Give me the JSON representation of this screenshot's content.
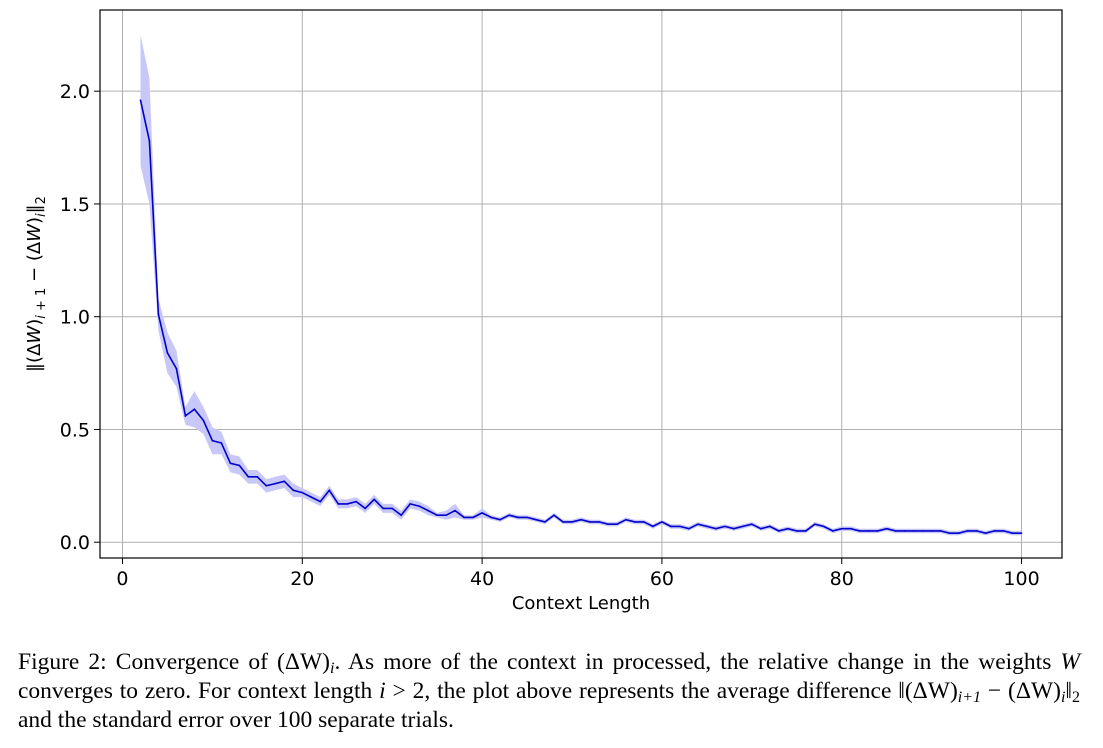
{
  "chart_data": {
    "type": "line",
    "xlabel": "Context Length",
    "ylabel": "||(ΔW)i+1 − (ΔW)i||2",
    "xlim": [
      -2.5,
      104.5
    ],
    "ylim": [
      -0.07,
      2.36
    ],
    "xticks": [
      0,
      20,
      40,
      60,
      80,
      100
    ],
    "yticks": [
      0.0,
      0.5,
      1.0,
      1.5,
      2.0
    ],
    "xtick_labels": [
      "0",
      "20",
      "40",
      "60",
      "80",
      "100"
    ],
    "ytick_labels": [
      "0.0",
      "0.5",
      "1.0",
      "1.5",
      "2.0"
    ],
    "grid": true,
    "line_color": "#0000cc",
    "band_color": "#c8c8f8",
    "series": [
      {
        "x": [
          2,
          3,
          4,
          5,
          6,
          7,
          8,
          9,
          10,
          11,
          12,
          13,
          14,
          15,
          16,
          17,
          18,
          19,
          20,
          21,
          22,
          23,
          24,
          25,
          26,
          27,
          28,
          29,
          30,
          31,
          32,
          33,
          34,
          35,
          36,
          37,
          38,
          39,
          40,
          41,
          42,
          43,
          44,
          45,
          46,
          47,
          48,
          49,
          50,
          51,
          52,
          53,
          54,
          55,
          56,
          57,
          58,
          59,
          60,
          61,
          62,
          63,
          64,
          65,
          66,
          67,
          68,
          69,
          70,
          71,
          72,
          73,
          74,
          75,
          76,
          77,
          78,
          79,
          80,
          81,
          82,
          83,
          84,
          85,
          86,
          87,
          88,
          89,
          90,
          91,
          92,
          93,
          94,
          95,
          96,
          97,
          98,
          99,
          100
        ],
        "y": [
          1.96,
          1.78,
          1.01,
          0.84,
          0.77,
          0.56,
          0.59,
          0.54,
          0.45,
          0.44,
          0.35,
          0.34,
          0.29,
          0.29,
          0.25,
          0.26,
          0.27,
          0.23,
          0.22,
          0.2,
          0.18,
          0.23,
          0.17,
          0.17,
          0.18,
          0.15,
          0.19,
          0.15,
          0.15,
          0.12,
          0.17,
          0.16,
          0.14,
          0.12,
          0.12,
          0.14,
          0.11,
          0.11,
          0.13,
          0.11,
          0.1,
          0.12,
          0.11,
          0.11,
          0.1,
          0.09,
          0.12,
          0.09,
          0.09,
          0.1,
          0.09,
          0.09,
          0.08,
          0.08,
          0.1,
          0.09,
          0.09,
          0.07,
          0.09,
          0.07,
          0.07,
          0.06,
          0.08,
          0.07,
          0.06,
          0.07,
          0.06,
          0.07,
          0.08,
          0.06,
          0.07,
          0.05,
          0.06,
          0.05,
          0.05,
          0.08,
          0.07,
          0.05,
          0.06,
          0.06,
          0.05,
          0.05,
          0.05,
          0.06,
          0.05,
          0.05,
          0.05,
          0.05,
          0.05,
          0.05,
          0.04,
          0.04,
          0.05,
          0.05,
          0.04,
          0.05,
          0.05,
          0.04,
          0.04
        ],
        "err": [
          0.29,
          0.28,
          0.07,
          0.09,
          0.08,
          0.04,
          0.08,
          0.06,
          0.06,
          0.05,
          0.04,
          0.04,
          0.03,
          0.03,
          0.03,
          0.03,
          0.03,
          0.03,
          0.02,
          0.02,
          0.02,
          0.02,
          0.02,
          0.02,
          0.02,
          0.02,
          0.02,
          0.02,
          0.02,
          0.02,
          0.02,
          0.02,
          0.02,
          0.01,
          0.02,
          0.03,
          0.01,
          0.01,
          0.02,
          0.01,
          0.01,
          0.01,
          0.01,
          0.01,
          0.01,
          0.01,
          0.01,
          0.01,
          0.01,
          0.01,
          0.01,
          0.01,
          0.01,
          0.01,
          0.01,
          0.01,
          0.01,
          0.01,
          0.01,
          0.01,
          0.01,
          0.01,
          0.01,
          0.01,
          0.01,
          0.01,
          0.01,
          0.01,
          0.01,
          0.01,
          0.01,
          0.01,
          0.01,
          0.01,
          0.01,
          0.01,
          0.01,
          0.01,
          0.01,
          0.01,
          0.01,
          0.01,
          0.01,
          0.01,
          0.01,
          0.01,
          0.01,
          0.01,
          0.01,
          0.01,
          0.01,
          0.01,
          0.01,
          0.01,
          0.01,
          0.01,
          0.01,
          0.01,
          0.01
        ]
      }
    ]
  },
  "caption": {
    "label": "Figure 2:",
    "text_1": "Convergence of (ΔW)",
    "sub_1": "i",
    "text_2": ". As more of the context in processed, the relative change in the weights ",
    "var_w": "W",
    "text_3": " converges to zero. For context length ",
    "var_i": "i",
    "text_4": " > 2, the plot above represents the average difference ‖(ΔW)",
    "sub_2": "i+1",
    "text_5": " − (ΔW)",
    "sub_3": "i",
    "text_6": "‖",
    "sub_4": "2",
    "text_7": " and the standard error over 100 separate trials."
  }
}
